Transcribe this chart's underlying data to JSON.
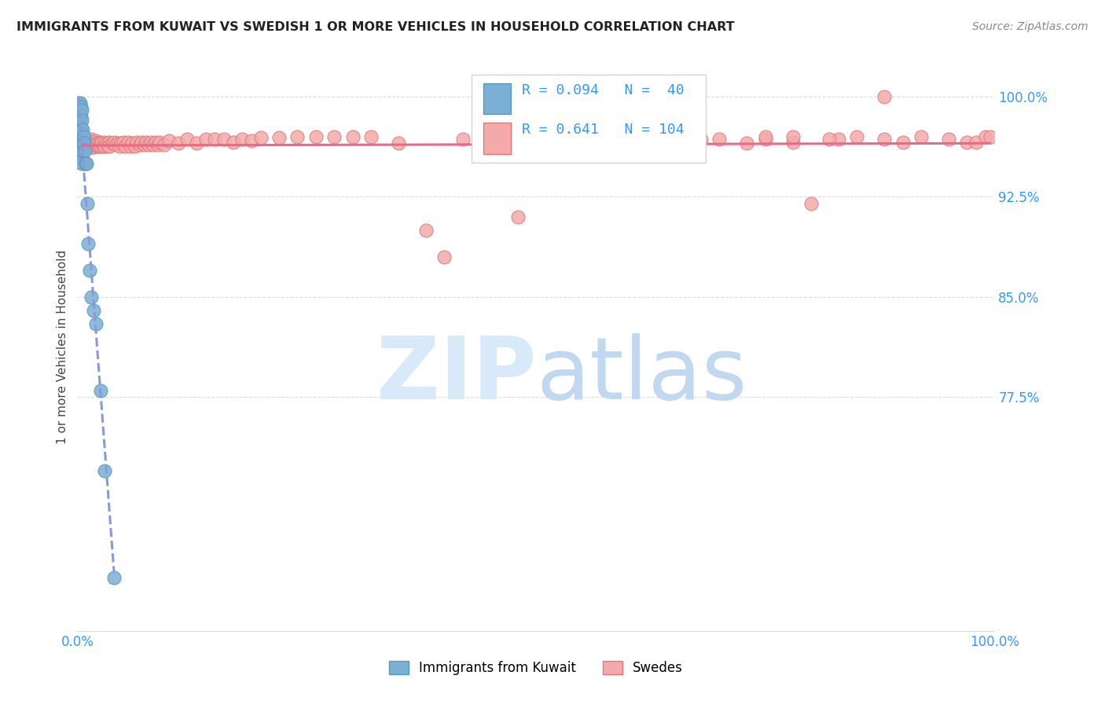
{
  "title": "IMMIGRANTS FROM KUWAIT VS SWEDISH 1 OR MORE VEHICLES IN HOUSEHOLD CORRELATION CHART",
  "source": "Source: ZipAtlas.com",
  "ylabel": "1 or more Vehicles in Household",
  "R1": 0.094,
  "N1": 40,
  "R2": 0.641,
  "N2": 104,
  "color_kuwait": "#7BAFD4",
  "color_kuwait_edge": "#5599BB",
  "color_swedes": "#F4AAAA",
  "color_swedes_edge": "#E07777",
  "color_trendline1": "#8899DD",
  "color_trendline2": "#EE6688",
  "background_color": "#FFFFFF",
  "watermark_zip_color": "#D8EAFA",
  "watermark_atlas_color": "#C0D8F0",
  "legend_label1": "Immigrants from Kuwait",
  "legend_label2": "Swedes",
  "xlim": [
    0.0,
    1.0
  ],
  "ylim": [
    0.6,
    1.025
  ],
  "yticks": [
    0.775,
    0.85,
    0.925,
    1.0
  ],
  "ytick_labels": [
    "77.5%",
    "85.0%",
    "92.5%",
    "100.0%"
  ],
  "kuwait_x": [
    0.001,
    0.001,
    0.001,
    0.002,
    0.002,
    0.002,
    0.002,
    0.002,
    0.002,
    0.002,
    0.003,
    0.003,
    0.003,
    0.003,
    0.003,
    0.003,
    0.004,
    0.004,
    0.004,
    0.005,
    0.005,
    0.005,
    0.005,
    0.005,
    0.006,
    0.006,
    0.007,
    0.007,
    0.008,
    0.009,
    0.01,
    0.011,
    0.012,
    0.013,
    0.015,
    0.018,
    0.02,
    0.025,
    0.03,
    0.04
  ],
  "kuwait_y": [
    0.995,
    0.99,
    0.985,
    0.99,
    0.985,
    0.98,
    0.975,
    0.97,
    0.965,
    0.96,
    0.995,
    0.988,
    0.982,
    0.975,
    0.968,
    0.96,
    0.992,
    0.985,
    0.975,
    0.99,
    0.982,
    0.97,
    0.96,
    0.95,
    0.975,
    0.965,
    0.97,
    0.965,
    0.96,
    0.95,
    0.95,
    0.92,
    0.89,
    0.87,
    0.85,
    0.84,
    0.83,
    0.78,
    0.72,
    0.64
  ],
  "swedes_x": [
    0.005,
    0.007,
    0.008,
    0.01,
    0.012,
    0.013,
    0.014,
    0.015,
    0.015,
    0.016,
    0.016,
    0.017,
    0.018,
    0.018,
    0.019,
    0.02,
    0.021,
    0.022,
    0.023,
    0.024,
    0.025,
    0.025,
    0.026,
    0.028,
    0.03,
    0.03,
    0.032,
    0.033,
    0.035,
    0.035,
    0.038,
    0.04,
    0.042,
    0.044,
    0.046,
    0.048,
    0.05,
    0.052,
    0.055,
    0.058,
    0.06,
    0.063,
    0.065,
    0.068,
    0.07,
    0.073,
    0.075,
    0.078,
    0.08,
    0.083,
    0.085,
    0.088,
    0.09,
    0.095,
    0.1,
    0.11,
    0.12,
    0.13,
    0.14,
    0.15,
    0.16,
    0.17,
    0.18,
    0.19,
    0.2,
    0.22,
    0.24,
    0.26,
    0.28,
    0.3,
    0.32,
    0.35,
    0.38,
    0.4,
    0.42,
    0.45,
    0.48,
    0.5,
    0.52,
    0.55,
    0.58,
    0.6,
    0.62,
    0.65,
    0.68,
    0.7,
    0.73,
    0.75,
    0.78,
    0.8,
    0.83,
    0.85,
    0.88,
    0.9,
    0.92,
    0.95,
    0.97,
    0.98,
    0.99,
    0.995,
    0.75,
    0.78,
    0.82,
    0.88
  ],
  "swedes_y": [
    0.955,
    0.95,
    0.96,
    0.968,
    0.965,
    0.962,
    0.964,
    0.968,
    0.965,
    0.962,
    0.966,
    0.965,
    0.962,
    0.966,
    0.964,
    0.967,
    0.965,
    0.963,
    0.965,
    0.963,
    0.966,
    0.963,
    0.965,
    0.963,
    0.966,
    0.963,
    0.965,
    0.963,
    0.966,
    0.963,
    0.965,
    0.966,
    0.964,
    0.965,
    0.963,
    0.965,
    0.966,
    0.963,
    0.966,
    0.963,
    0.965,
    0.963,
    0.966,
    0.964,
    0.966,
    0.964,
    0.966,
    0.964,
    0.966,
    0.964,
    0.966,
    0.964,
    0.966,
    0.964,
    0.967,
    0.965,
    0.968,
    0.965,
    0.968,
    0.968,
    0.968,
    0.966,
    0.968,
    0.967,
    0.969,
    0.969,
    0.97,
    0.97,
    0.97,
    0.97,
    0.97,
    0.965,
    0.9,
    0.88,
    0.968,
    0.97,
    0.91,
    0.97,
    0.968,
    0.97,
    0.965,
    0.97,
    0.968,
    0.966,
    0.968,
    0.968,
    0.965,
    0.968,
    0.966,
    0.92,
    0.968,
    0.97,
    0.968,
    0.966,
    0.97,
    0.968,
    0.966,
    0.966,
    0.97,
    0.97,
    0.97,
    0.97,
    0.968,
    1.0
  ]
}
